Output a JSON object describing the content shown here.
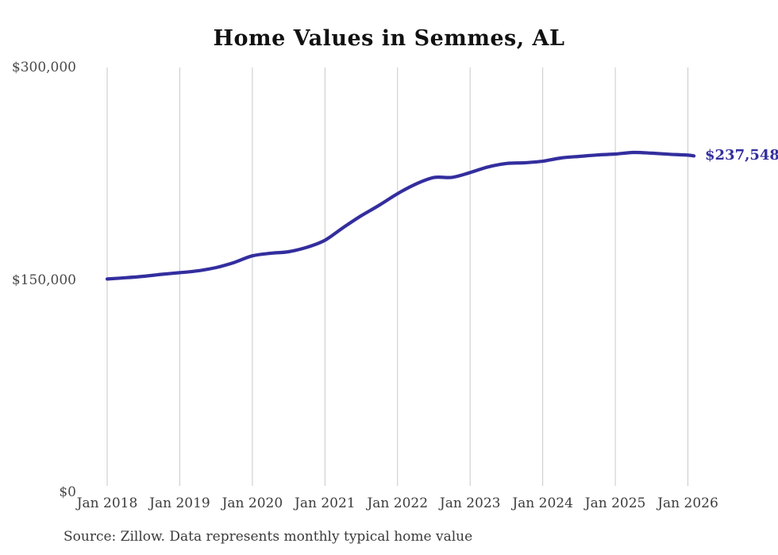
{
  "page": {
    "source_note": "Source: Zillow. Data represents monthly typical home value"
  },
  "colors": {
    "line": "#332e9e",
    "end_label": "#332e9e",
    "grid": "#c9c9c9",
    "axis_text": "#4a4a4a",
    "title_text": "#111111",
    "background": "#ffffff"
  },
  "chart_data": {
    "type": "line",
    "title": "Home Values in Semmes, AL",
    "xlabel": "",
    "ylabel": "",
    "ylim": [
      0,
      300000
    ],
    "grid": "vertical-only",
    "legend": "none",
    "end_label": "$237,548",
    "last_value": 237548,
    "y_ticks": [
      {
        "value": 0,
        "label": "$0"
      },
      {
        "value": 150000,
        "label": "$150,000"
      },
      {
        "value": 300000,
        "label": "$300,000"
      }
    ],
    "x_ticks": [
      {
        "year": 2018,
        "label": "Jan 2018"
      },
      {
        "year": 2019,
        "label": "Jan 2019"
      },
      {
        "year": 2020,
        "label": "Jan 2020"
      },
      {
        "year": 2021,
        "label": "Jan 2021"
      },
      {
        "year": 2022,
        "label": "Jan 2022"
      },
      {
        "year": 2023,
        "label": "Jan 2023"
      },
      {
        "year": 2024,
        "label": "Jan 2024"
      },
      {
        "year": 2025,
        "label": "Jan 2025"
      },
      {
        "year": 2026,
        "label": "Jan 2026"
      }
    ],
    "series": [
      {
        "name": "Typical home value (monthly)",
        "points": [
          {
            "date": "2018-01",
            "value": 150600
          },
          {
            "date": "2018-04",
            "value": 151500
          },
          {
            "date": "2018-07",
            "value": 152500
          },
          {
            "date": "2018-10",
            "value": 153900
          },
          {
            "date": "2019-01",
            "value": 155100
          },
          {
            "date": "2019-04",
            "value": 156400
          },
          {
            "date": "2019-07",
            "value": 158700
          },
          {
            "date": "2019-10",
            "value": 162300
          },
          {
            "date": "2020-01",
            "value": 167000
          },
          {
            "date": "2020-04",
            "value": 168800
          },
          {
            "date": "2020-07",
            "value": 169900
          },
          {
            "date": "2020-10",
            "value": 173000
          },
          {
            "date": "2021-01",
            "value": 178000
          },
          {
            "date": "2021-04",
            "value": 186900
          },
          {
            "date": "2021-07",
            "value": 195300
          },
          {
            "date": "2021-10",
            "value": 202800
          },
          {
            "date": "2022-01",
            "value": 210900
          },
          {
            "date": "2022-04",
            "value": 217600
          },
          {
            "date": "2022-07",
            "value": 222300
          },
          {
            "date": "2022-10",
            "value": 222400
          },
          {
            "date": "2023-01",
            "value": 225800
          },
          {
            "date": "2023-04",
            "value": 229800
          },
          {
            "date": "2023-07",
            "value": 232200
          },
          {
            "date": "2023-10",
            "value": 232700
          },
          {
            "date": "2024-01",
            "value": 233800
          },
          {
            "date": "2024-04",
            "value": 236100
          },
          {
            "date": "2024-07",
            "value": 237200
          },
          {
            "date": "2024-10",
            "value": 238200
          },
          {
            "date": "2025-01",
            "value": 238900
          },
          {
            "date": "2025-04",
            "value": 240000
          },
          {
            "date": "2025-07",
            "value": 239500
          },
          {
            "date": "2025-10",
            "value": 238700
          },
          {
            "date": "2026-01",
            "value": 238100
          },
          {
            "date": "2026-02",
            "value": 237548
          }
        ]
      }
    ]
  }
}
